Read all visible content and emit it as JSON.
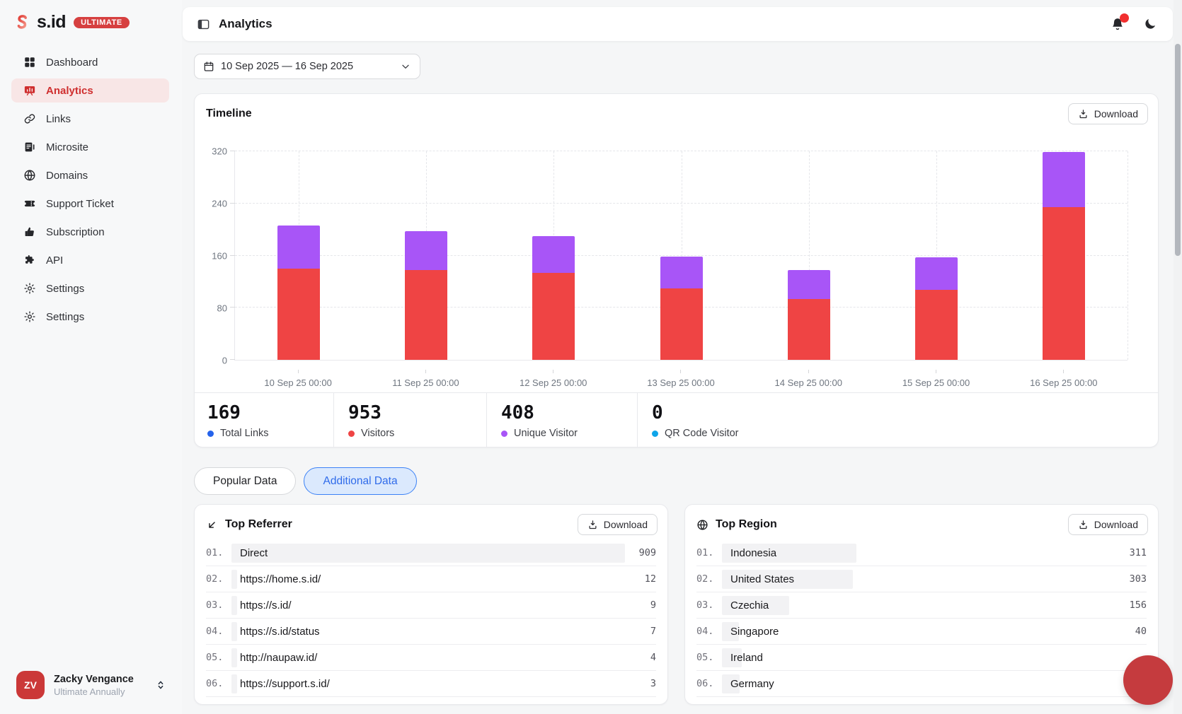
{
  "brand": {
    "name": "s.id",
    "badge": "ULTIMATE"
  },
  "sidebar": {
    "items": [
      {
        "label": "Dashboard",
        "icon": "grid-icon",
        "active": false
      },
      {
        "label": "Analytics",
        "icon": "analytics-icon",
        "active": true
      },
      {
        "label": "Links",
        "icon": "link-icon",
        "active": false
      },
      {
        "label": "Microsite",
        "icon": "microsite-icon",
        "active": false
      },
      {
        "label": "Domains",
        "icon": "globe-icon",
        "active": false
      },
      {
        "label": "Support Ticket",
        "icon": "ticket-icon",
        "active": false
      },
      {
        "label": "Subscription",
        "icon": "thumbs-up-icon",
        "active": false
      },
      {
        "label": "API",
        "icon": "puzzle-icon",
        "active": false
      },
      {
        "label": "Settings",
        "icon": "gear-icon",
        "active": false
      },
      {
        "label": "Settings",
        "icon": "gear-icon",
        "active": false
      }
    ]
  },
  "user": {
    "initials": "ZV",
    "name": "Zacky Vengance",
    "plan": "Ultimate Annually"
  },
  "header": {
    "title": "Analytics"
  },
  "filters": {
    "date_range": "10 Sep 2025 — 16 Sep 2025"
  },
  "timeline": {
    "title": "Timeline",
    "download_label": "Download"
  },
  "chart_data": {
    "type": "bar",
    "stacked": true,
    "title": "Timeline",
    "categories": [
      "10 Sep 25 00:00",
      "11 Sep 25 00:00",
      "12 Sep 25 00:00",
      "13 Sep 25 00:00",
      "14 Sep 25 00:00",
      "15 Sep 25 00:00",
      "16 Sep 25 00:00"
    ],
    "series": [
      {
        "name": "Visitors",
        "color": "#EF4444",
        "values": [
          140,
          137,
          133,
          109,
          93,
          107,
          234
        ]
      },
      {
        "name": "Unique Visitor",
        "color": "#A855F7",
        "values": [
          65,
          60,
          56,
          49,
          44,
          50,
          84
        ]
      }
    ],
    "xlabel": "",
    "ylabel": "",
    "ylim": [
      0,
      320
    ],
    "yticks": [
      0,
      80,
      160,
      240,
      320
    ],
    "grid": true,
    "legend": "none"
  },
  "stats": [
    {
      "value": "169",
      "label": "Total Links",
      "color": "#2563EB"
    },
    {
      "value": "953",
      "label": "Visitors",
      "color": "#EF4444"
    },
    {
      "value": "408",
      "label": "Unique Visitor",
      "color": "#A855F7"
    },
    {
      "value": "0",
      "label": "QR Code Visitor",
      "color": "#0EA5E9"
    }
  ],
  "tabs": [
    {
      "label": "Popular Data",
      "active": false
    },
    {
      "label": "Additional Data",
      "active": true
    }
  ],
  "top_referrer": {
    "title": "Top Referrer",
    "icon": "arrow-down-left-icon",
    "download_label": "Download",
    "rows": [
      {
        "index": "01.",
        "label": "Direct",
        "value": "909"
      },
      {
        "index": "02.",
        "label": "https://home.s.id/",
        "value": "12"
      },
      {
        "index": "03.",
        "label": "https://s.id/",
        "value": "9"
      },
      {
        "index": "04.",
        "label": "https://s.id/status",
        "value": "7"
      },
      {
        "index": "05.",
        "label": "http://naupaw.id/",
        "value": "4"
      },
      {
        "index": "06.",
        "label": "https://support.s.id/",
        "value": "3"
      }
    ]
  },
  "top_region": {
    "title": "Top Region",
    "icon": "globe-icon",
    "download_label": "Download",
    "rows": [
      {
        "index": "01.",
        "label": "Indonesia",
        "value": "311"
      },
      {
        "index": "02.",
        "label": "United States",
        "value": "303"
      },
      {
        "index": "03.",
        "label": "Czechia",
        "value": "156"
      },
      {
        "index": "04.",
        "label": "Singapore",
        "value": "40"
      },
      {
        "index": "05.",
        "label": "Ireland",
        "value": "",
        "bar_pct": 5
      },
      {
        "index": "06.",
        "label": "Germany",
        "value": "",
        "bar_pct": 4.5
      }
    ]
  }
}
